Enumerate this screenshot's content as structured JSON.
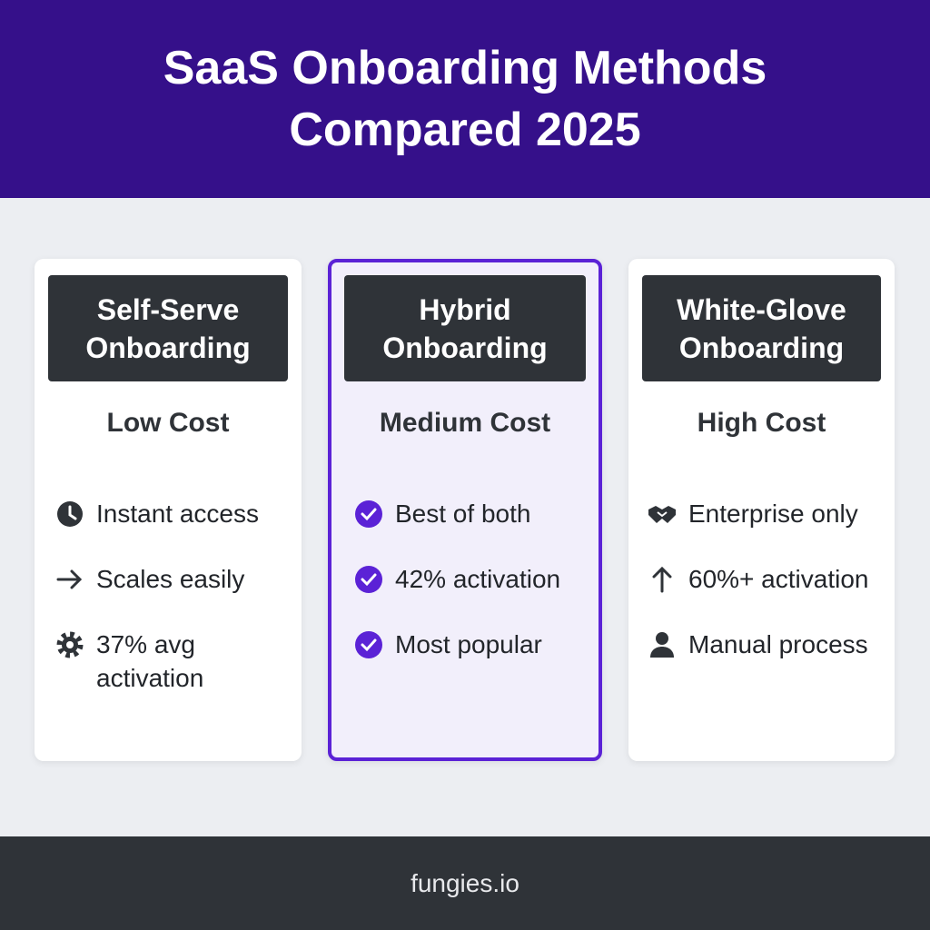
{
  "header": {
    "title": "SaaS Onboarding Methods Compared 2025"
  },
  "cards": [
    {
      "title": "Self-Serve Onboarding",
      "cost": "Low Cost",
      "items": [
        "Instant access",
        "Scales easily",
        "37% avg activation"
      ]
    },
    {
      "title": "Hybrid Onboarding",
      "cost": "Medium Cost",
      "items": [
        "Best of both",
        "42% activation",
        "Most popular"
      ]
    },
    {
      "title": "White-Glove Onboarding",
      "cost": "High Cost",
      "items": [
        "Enterprise only",
        "60%+ activation",
        "Manual process"
      ]
    }
  ],
  "footer": {
    "text": "fungies.io"
  }
}
